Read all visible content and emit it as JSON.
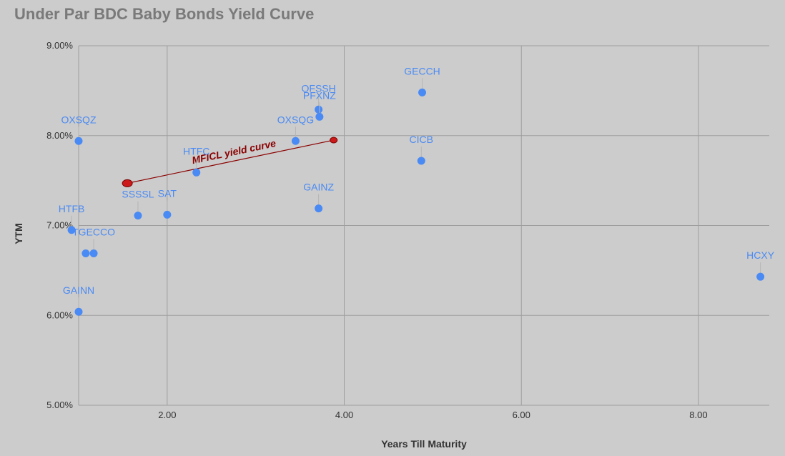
{
  "chart_data": {
    "type": "scatter",
    "title": "Under Par BDC Baby Bonds Yield Curve",
    "xlabel": "Years Till Maturity",
    "ylabel": "YTM",
    "xlim": [
      1.0,
      8.8
    ],
    "ylim": [
      5.0,
      9.0
    ],
    "x_ticks": [
      "2.00",
      "4.00",
      "6.00",
      "8.00"
    ],
    "y_ticks": [
      "5.00%",
      "6.00%",
      "7.00%",
      "8.00%",
      "9.00%"
    ],
    "grid": true,
    "legend": "none",
    "point_color": "#4a8af4",
    "points": [
      {
        "label": "OXSQZ",
        "x": 1.0,
        "y": 7.94
      },
      {
        "label": "HTFB",
        "x": 0.92,
        "y": 6.95
      },
      {
        "label": "",
        "x": 1.08,
        "y": 6.69
      },
      {
        "label": "TGECCO",
        "x": 1.17,
        "y": 6.69
      },
      {
        "label": "GAINN",
        "x": 1.0,
        "y": 6.04
      },
      {
        "label": "SSSSL",
        "x": 1.67,
        "y": 7.11
      },
      {
        "label": "SAT",
        "x": 2.0,
        "y": 7.12
      },
      {
        "label": "HTFC",
        "x": 2.33,
        "y": 7.59
      },
      {
        "label": "OXSQG",
        "x": 3.45,
        "y": 7.94
      },
      {
        "label": "OFSSH",
        "x": 3.71,
        "y": 8.29
      },
      {
        "label": "PFXNZ",
        "x": 3.72,
        "y": 8.21
      },
      {
        "label": "GAINZ",
        "x": 3.71,
        "y": 7.19
      },
      {
        "label": "GECCH",
        "x": 4.88,
        "y": 8.48
      },
      {
        "label": "CICB",
        "x": 4.87,
        "y": 7.72
      },
      {
        "label": "HCXY",
        "x": 8.7,
        "y": 6.43
      }
    ],
    "annotation": {
      "label": "MFICL yield curve",
      "color": "#cc1a1a",
      "x1": 1.55,
      "y1": 7.47,
      "x2": 3.88,
      "y2": 7.95
    }
  }
}
